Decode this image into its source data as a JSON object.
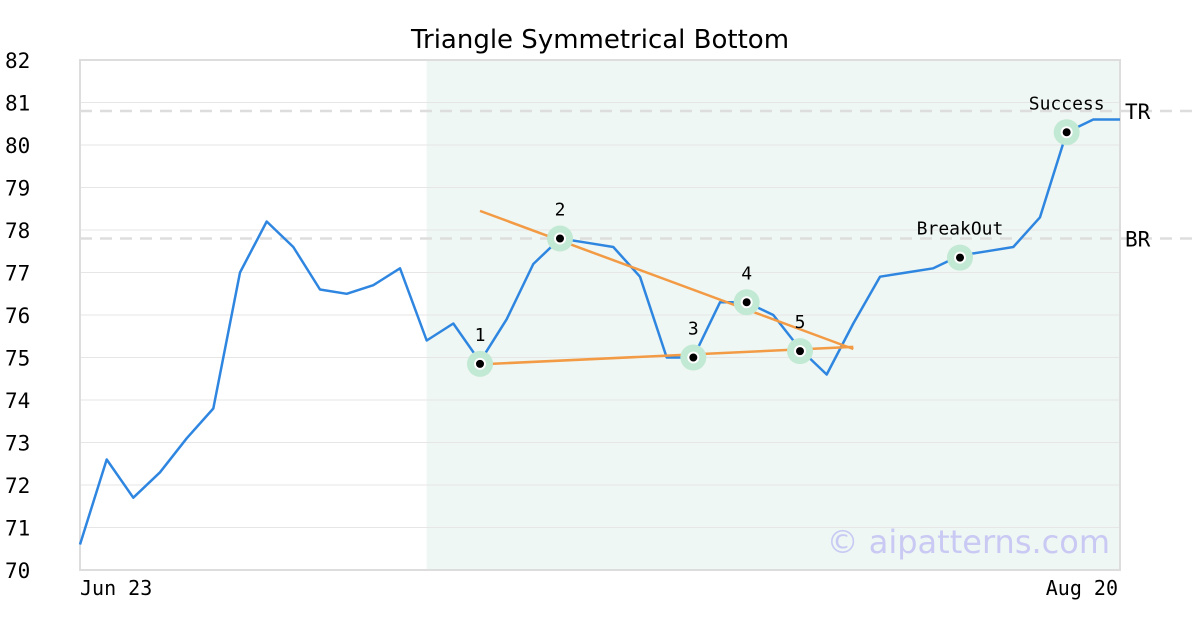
{
  "chart_data": {
    "type": "line",
    "title": "Triangle Symmetrical Bottom",
    "xlabel": "",
    "ylabel": "",
    "ylim": [
      70,
      82
    ],
    "yticks": [
      70,
      71,
      72,
      73,
      74,
      75,
      76,
      77,
      78,
      79,
      80,
      81,
      82
    ],
    "x_tick_labels": [
      "Jun 23",
      "Aug 20"
    ],
    "grid": true,
    "series": [
      {
        "color": "#2f86e0",
        "values": [
          70.6,
          72.6,
          71.7,
          72.3,
          73.1,
          73.8,
          77.0,
          78.2,
          77.6,
          76.6,
          76.5,
          76.7,
          77.1,
          75.4,
          75.8,
          74.9,
          75.9,
          77.2,
          77.8,
          77.7,
          77.6,
          76.9,
          75.0,
          75.0,
          76.3,
          76.3,
          76.0,
          75.2,
          74.6,
          75.8,
          76.9,
          77.0,
          77.1,
          77.4,
          77.5,
          77.6,
          78.3,
          80.3,
          80.6,
          80.6
        ]
      }
    ],
    "pattern_region": {
      "start_index": 13,
      "end_index": 39,
      "color": "#eef7f3"
    },
    "levels": [
      {
        "label": "TR",
        "value": 80.8,
        "color": "#dddddd"
      },
      {
        "label": "BR",
        "value": 77.8,
        "color": "#dddddd"
      }
    ],
    "trendlines": [
      {
        "color": "#f39a45",
        "points": [
          [
            15.0,
            78.45
          ],
          [
            29.0,
            75.2
          ]
        ]
      },
      {
        "color": "#f39a45",
        "points": [
          [
            15.4,
            74.85
          ],
          [
            29.0,
            75.25
          ]
        ]
      }
    ],
    "markers": [
      {
        "label": "1",
        "index": 15,
        "value": 74.85
      },
      {
        "label": "2",
        "index": 18,
        "value": 77.8
      },
      {
        "label": "3",
        "index": 23,
        "value": 75.0
      },
      {
        "label": "4",
        "index": 25,
        "value": 76.3
      },
      {
        "label": "5",
        "index": 27,
        "value": 75.15
      },
      {
        "label": "BreakOut",
        "index": 33,
        "value": 77.35
      },
      {
        "label": "Success",
        "index": 37,
        "value": 80.3
      }
    ],
    "watermark": "© aipatterns.com"
  }
}
